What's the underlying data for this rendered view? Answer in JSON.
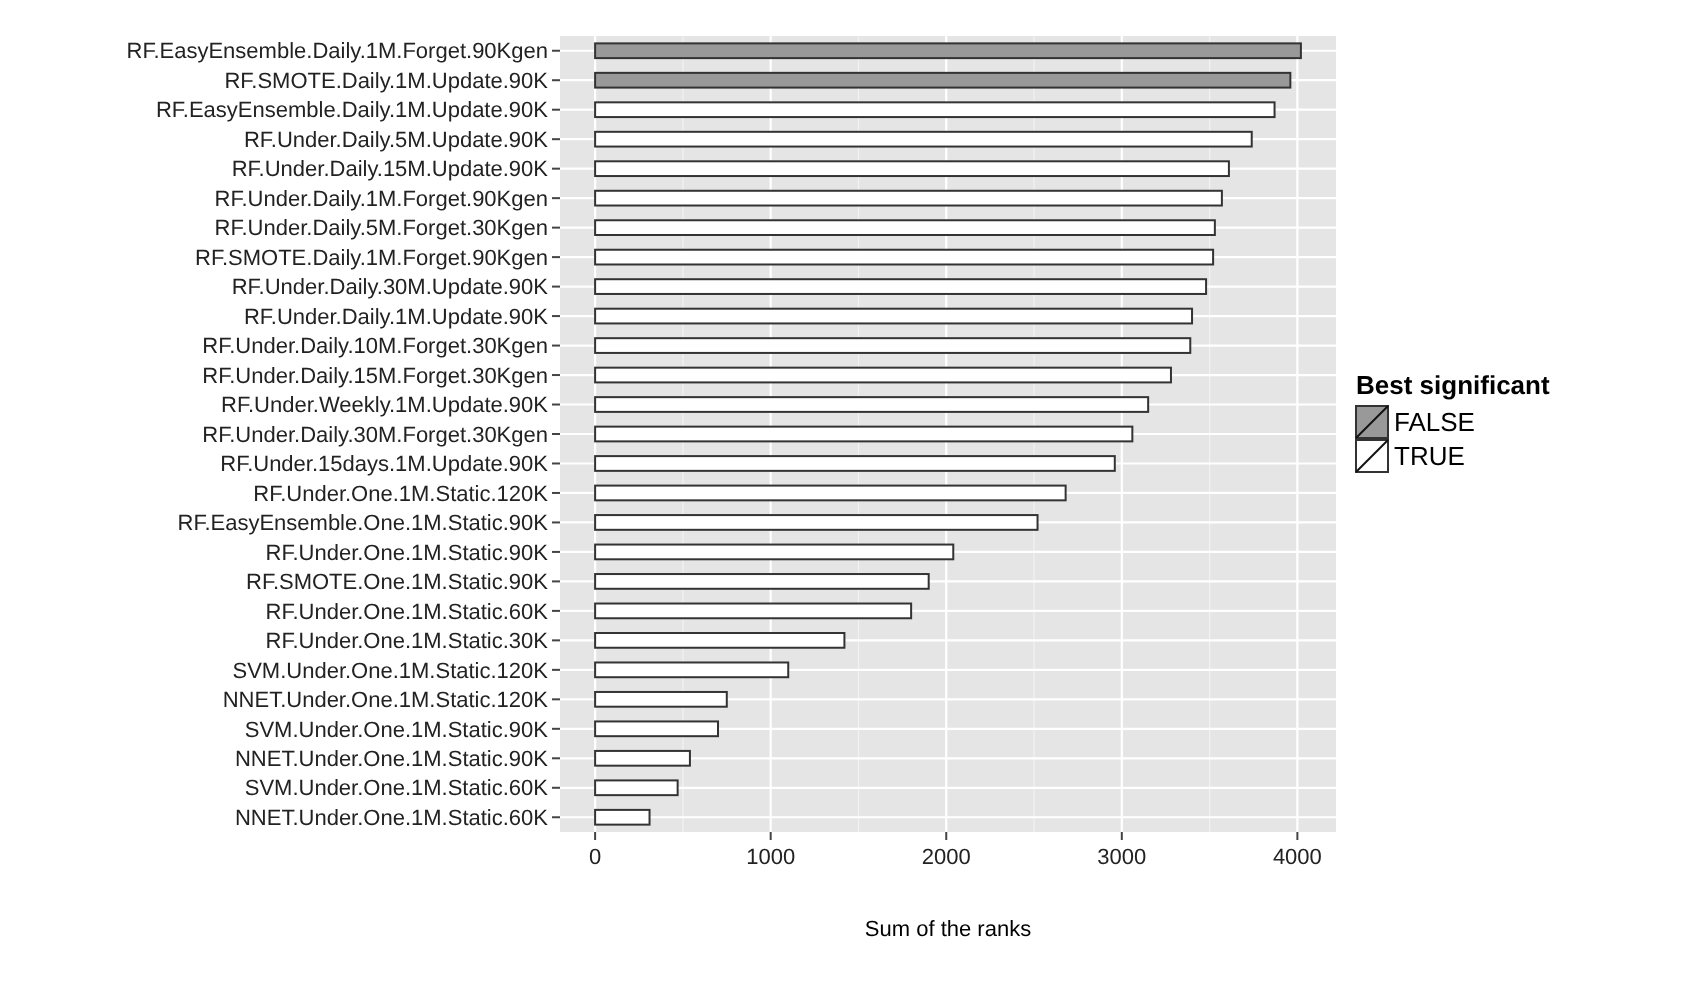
{
  "chart_data": {
    "type": "bar",
    "orientation": "horizontal",
    "xlabel": "Sum of the ranks",
    "legend_title": "Best significant",
    "legend": "right",
    "grid": true,
    "categories": [
      "RF.EasyEnsemble.Daily.1M.Forget.90Kgen",
      "RF.SMOTE.Daily.1M.Update.90K",
      "RF.EasyEnsemble.Daily.1M.Update.90K",
      "RF.Under.Daily.5M.Update.90K",
      "RF.Under.Daily.15M.Update.90K",
      "RF.Under.Daily.1M.Forget.90Kgen",
      "RF.Under.Daily.5M.Forget.30Kgen",
      "RF.SMOTE.Daily.1M.Forget.90Kgen",
      "RF.Under.Daily.30M.Update.90K",
      "RF.Under.Daily.1M.Update.90K",
      "RF.Under.Daily.10M.Forget.30Kgen",
      "RF.Under.Daily.15M.Forget.30Kgen",
      "RF.Under.Weekly.1M.Update.90K",
      "RF.Under.Daily.30M.Forget.30Kgen",
      "RF.Under.15days.1M.Update.90K",
      "RF.Under.One.1M.Static.120K",
      "RF.EasyEnsemble.One.1M.Static.90K",
      "RF.Under.One.1M.Static.90K",
      "RF.SMOTE.One.1M.Static.90K",
      "RF.Under.One.1M.Static.60K",
      "RF.Under.One.1M.Static.30K",
      "SVM.Under.One.1M.Static.120K",
      "NNET.Under.One.1M.Static.120K",
      "SVM.Under.One.1M.Static.90K",
      "NNET.Under.One.1M.Static.90K",
      "SVM.Under.One.1M.Static.60K",
      "NNET.Under.One.1M.Static.60K"
    ],
    "series": [
      {
        "name": "FALSE",
        "color": "#999999",
        "values": [
          4020,
          3960,
          null,
          null,
          null,
          null,
          null,
          null,
          null,
          null,
          null,
          null,
          null,
          null,
          null,
          null,
          null,
          null,
          null,
          null,
          null,
          null,
          null,
          null,
          null,
          null,
          null
        ]
      },
      {
        "name": "TRUE",
        "color": "#ffffff",
        "values": [
          null,
          null,
          3870,
          3740,
          3610,
          3570,
          3530,
          3520,
          3480,
          3400,
          3390,
          3280,
          3150,
          3060,
          2960,
          2680,
          2520,
          2040,
          1900,
          1800,
          1420,
          1100,
          750,
          700,
          540,
          470,
          310
        ]
      }
    ],
    "xlim": [
      -200,
      4220
    ],
    "xticks": [
      0,
      1000,
      2000,
      3000,
      4000
    ]
  }
}
